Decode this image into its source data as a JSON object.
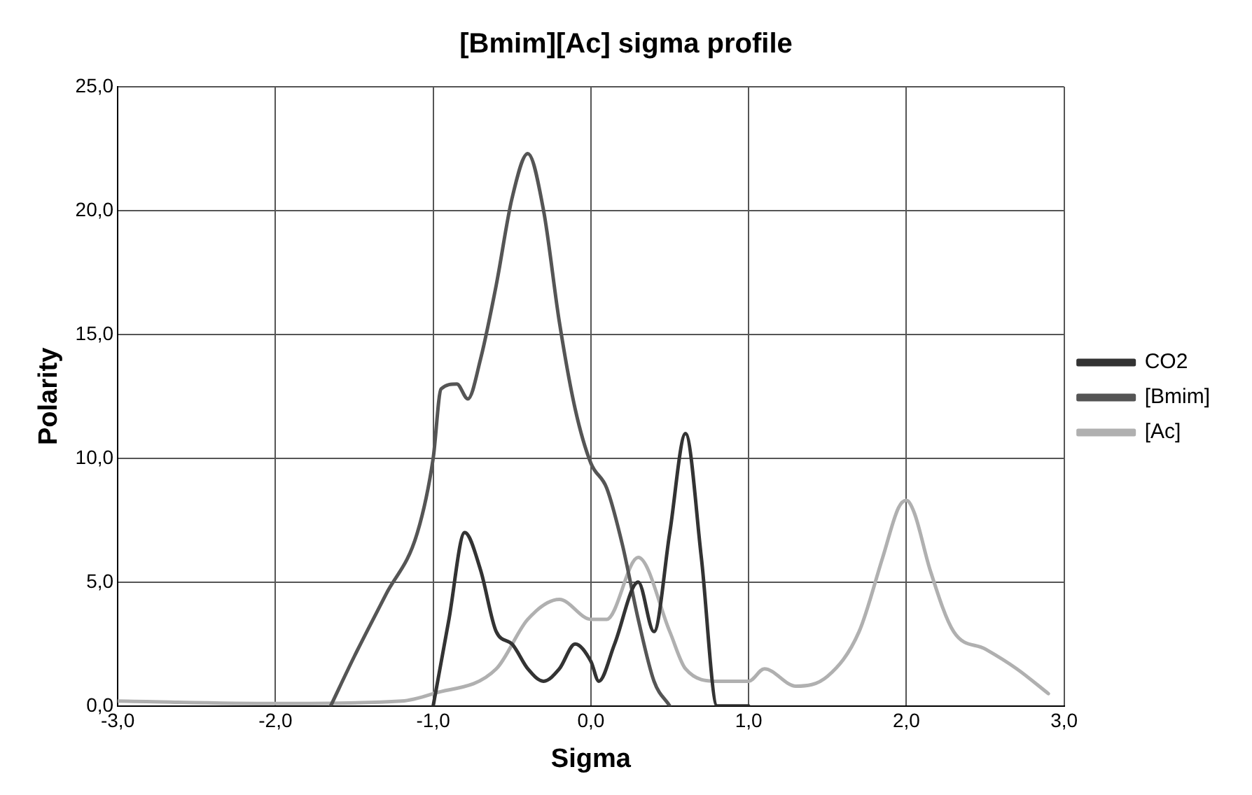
{
  "chart_data": {
    "type": "line",
    "title": "[Bmim][Ac] sigma profile",
    "xlabel": "Sigma",
    "ylabel": "Polarity",
    "xlim": [
      -3,
      3
    ],
    "xticks": [
      {
        "value": -3,
        "label": "-3,0"
      },
      {
        "value": -2,
        "label": "-2,0"
      },
      {
        "value": -1,
        "label": "-1,0"
      },
      {
        "value": 0,
        "label": "0,0"
      },
      {
        "value": 1,
        "label": "1,0"
      },
      {
        "value": 2,
        "label": "2,0"
      },
      {
        "value": 3,
        "label": "3,0"
      }
    ],
    "ylim": [
      0,
      25
    ],
    "yticks": [
      {
        "value": 0,
        "label": "0,0"
      },
      {
        "value": 5,
        "label": "5,0"
      },
      {
        "value": 10,
        "label": "10,0"
      },
      {
        "value": 15,
        "label": "15,0"
      },
      {
        "value": 20,
        "label": "20,0"
      },
      {
        "value": 25,
        "label": "25,0"
      }
    ],
    "grid": true,
    "legend": "right",
    "marker": "none",
    "series": [
      {
        "name": "CO2",
        "color": "#333333",
        "x": [
          -1.0,
          -0.9,
          -0.8,
          -0.7,
          -0.6,
          -0.5,
          -0.4,
          -0.3,
          -0.2,
          -0.1,
          0.0,
          0.05,
          0.15,
          0.3,
          0.4,
          0.5,
          0.6,
          0.7,
          0.8,
          1.0
        ],
        "values": [
          0,
          3.5,
          7,
          5.5,
          3,
          2.5,
          1.5,
          1,
          1.5,
          2.5,
          1.8,
          1,
          2.5,
          5,
          3,
          7,
          11,
          6,
          0,
          0
        ]
      },
      {
        "name": "[Bmim]",
        "color": "#555555",
        "x": [
          -1.65,
          -1.5,
          -1.3,
          -1.1,
          -1.0,
          -0.95,
          -0.85,
          -0.78,
          -0.7,
          -0.6,
          -0.5,
          -0.4,
          -0.3,
          -0.2,
          -0.1,
          0.0,
          0.1,
          0.2,
          0.3,
          0.4,
          0.5
        ],
        "values": [
          0,
          2,
          4.5,
          7,
          10,
          12.8,
          13,
          12.4,
          14,
          17,
          20.5,
          22.3,
          20,
          15.5,
          12,
          9.8,
          8.8,
          6.5,
          3.5,
          1,
          0
        ]
      },
      {
        "name": "[Ac]",
        "color": "#b0b0b0",
        "x": [
          -3.0,
          -2.0,
          -1.2,
          -1.0,
          -0.6,
          -0.4,
          -0.2,
          0.0,
          0.1,
          0.3,
          0.5,
          0.6,
          0.8,
          1.0,
          1.1,
          1.3,
          1.5,
          1.7,
          1.85,
          1.95,
          2.0,
          2.05,
          2.15,
          2.3,
          2.5,
          2.7,
          2.9
        ],
        "values": [
          0.2,
          0.1,
          0.2,
          0.5,
          1.5,
          3.5,
          4.3,
          3.5,
          3.5,
          6,
          3,
          1.5,
          1,
          1,
          1.5,
          0.8,
          1.2,
          3,
          6,
          8,
          8.3,
          7.8,
          5.5,
          3,
          2.3,
          1.5,
          0.5
        ]
      }
    ]
  }
}
